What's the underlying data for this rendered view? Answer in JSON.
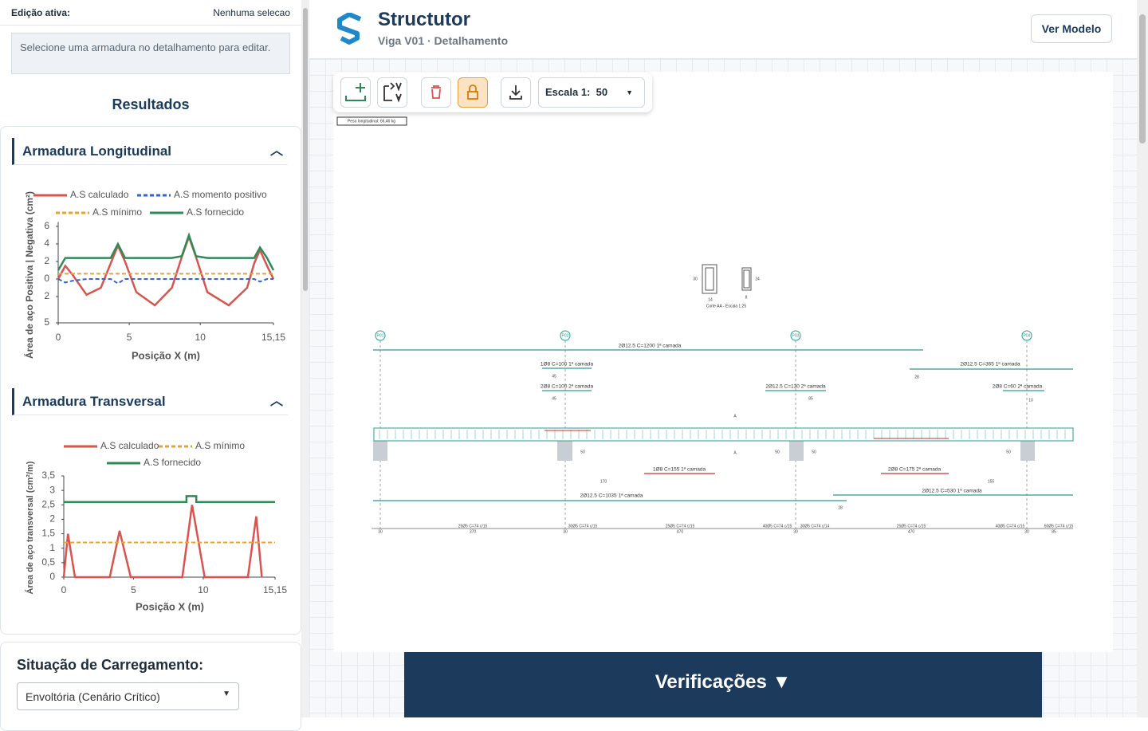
{
  "sidebar": {
    "edit_label": "Edição ativa:",
    "edit_value": "Nenhuma selecao",
    "info": "Selecione uma armadura no detalhamento para editar.",
    "results_title": "Resultados",
    "long_title": "Armadura Longitudinal",
    "trans_title": "Armadura Transversal",
    "load_title": "Situação de Carregamento:",
    "load_select": "Envoltória (Cenário Crítico)"
  },
  "chart_data": [
    {
      "type": "line",
      "y_label": "Área de aço Positiva | Negativa (cm²)",
      "x_label": "Posição X (m)",
      "xlim": [
        0,
        15.15
      ],
      "ylim": [
        -5,
        6.5
      ],
      "xticks": [
        0,
        5,
        10,
        {
          "value": 15.15,
          "label": "15,15"
        }
      ],
      "yticks": [
        6,
        4,
        2,
        0,
        {
          "value": -2,
          "label": "2"
        },
        {
          "value": -5,
          "label": "5"
        }
      ],
      "series": [
        {
          "name": "A.S calculado",
          "color": "#d9534f",
          "style": "solid",
          "x": [
            0,
            0.5,
            1,
            2,
            3,
            3.7,
            4.2,
            4.7,
            5.5,
            6.8,
            8,
            8.7,
            9.2,
            9.7,
            10.5,
            12,
            13.3,
            13.8,
            14.2,
            14.7,
            15.15
          ],
          "values": [
            0,
            1.5,
            0.5,
            -1.8,
            -1,
            1.8,
            3.8,
            2,
            -1.5,
            -3,
            -1,
            2.5,
            4.8,
            2.5,
            -1.5,
            -3,
            -1,
            1.8,
            3.3,
            1.5,
            0
          ]
        },
        {
          "name": "A.S momento positivo",
          "color": "#3366cc",
          "style": "dashed",
          "x": [
            0,
            0.5,
            1,
            2,
            3,
            3.7,
            4.2,
            4.7,
            5.5,
            6.8,
            8,
            8.7,
            9.2,
            9.7,
            10.5,
            12,
            13.3,
            13.8,
            14.2,
            14.7,
            15.15
          ],
          "values": [
            0,
            -0.4,
            -0.2,
            0,
            0,
            0,
            -0.5,
            0,
            0,
            0,
            0,
            0,
            0,
            0,
            0,
            0,
            0,
            0,
            -0.3,
            0,
            0
          ]
        },
        {
          "name": "A.S mínimo",
          "color": "#e6a23c",
          "style": "dashed",
          "x": [
            0,
            15.15
          ],
          "values": [
            0.6,
            0.6
          ]
        },
        {
          "name": "A.S fornecido",
          "color": "#2e8b57",
          "style": "solid",
          "x": [
            0,
            0.5,
            1,
            2,
            3,
            3.7,
            4.2,
            4.7,
            5.5,
            6.8,
            8,
            8.7,
            9.2,
            9.7,
            10.5,
            12,
            13.3,
            13.8,
            14.2,
            14.7,
            15.15
          ],
          "values": [
            1,
            2.4,
            2.4,
            2.4,
            2.4,
            2.4,
            4,
            2.4,
            2.4,
            2.4,
            2.4,
            2.6,
            5,
            2.6,
            2.4,
            2.4,
            2.4,
            2.4,
            3.6,
            2.4,
            1
          ]
        }
      ]
    },
    {
      "type": "line",
      "y_label": "Área de aço transversal (cm²/m)",
      "x_label": "Posição X (m)",
      "xlim": [
        0,
        15.15
      ],
      "ylim": [
        0,
        3.5
      ],
      "xticks": [
        0,
        5,
        10,
        {
          "value": 15.15,
          "label": "15,15"
        }
      ],
      "yticks": [
        {
          "value": 3.5,
          "label": "3,5"
        },
        3,
        {
          "value": 2.5,
          "label": "2,5"
        },
        2,
        {
          "value": 1.5,
          "label": "1,5"
        },
        1,
        {
          "value": 0.5,
          "label": "0,5"
        },
        0
      ],
      "series": [
        {
          "name": "A.S calculado",
          "color": "#d9534f",
          "style": "solid",
          "x": [
            0,
            0.3,
            0.8,
            3.3,
            4,
            4.8,
            8.5,
            9.2,
            10.1,
            13.2,
            13.8,
            14.2
          ],
          "values": [
            0,
            1.5,
            0,
            0,
            1.6,
            0,
            0,
            2.5,
            0,
            0,
            2.1,
            0
          ]
        },
        {
          "name": "A.S mínimo",
          "color": "#e6a23c",
          "style": "dashed",
          "x": [
            0,
            15.15
          ],
          "values": [
            1.2,
            1.2
          ]
        },
        {
          "name": "A.S fornecido",
          "color": "#2e8b57",
          "style": "solid",
          "x": [
            0,
            8.8,
            8.8,
            9.5,
            9.5,
            15.15
          ],
          "values": [
            2.6,
            2.6,
            2.8,
            2.8,
            2.6,
            2.6
          ]
        }
      ]
    }
  ],
  "header": {
    "title": "Structutor",
    "subtitle": "Viga V01 · Detalhamento",
    "button": "Ver Modelo"
  },
  "toolbar": {
    "scale_label": "Escala 1:",
    "scale_value": "50"
  },
  "drawing": {
    "weight_label": "Peso longitudinal: 66,46 kg",
    "section_title": "Corte AA - Escala 1:25",
    "pillars": [
      "P01",
      "P02",
      "P03",
      "P04"
    ],
    "bars": [
      "2Ø12.5 C=1200 1ª camada",
      "1Ø8 C=100 1ª camada",
      "2Ø8 C=100 2ª camada",
      "2Ø12.5 C=130 2ª camada",
      "2Ø12.5 C=365 1ª camada",
      "2Ø8 C=60 2ª camada",
      "1Ø8 C=155 1ª camada",
      "2Ø8 C=175 2ª camada",
      "2Ø12.5 C=1035 1ª camada",
      "2Ø12.5 C=530 1ª camada"
    ],
    "dims": [
      "45",
      "45",
      "85",
      "10",
      "28",
      "50",
      "50",
      "50",
      "50",
      "170",
      "155",
      "28",
      "30",
      "14",
      "24",
      "8",
      "A",
      "A",
      "370",
      "470",
      "470",
      "85",
      "30",
      "30",
      "30",
      "30"
    ],
    "stirrups": [
      "25Ø5 C=74 c/15",
      "30Ø5 C=74 c/15",
      "25Ø5 C=74 c/15",
      "40Ø5 C=74 c/15",
      "30Ø5 C=74 c/14",
      "25Ø5 C=74 c/15",
      "40Ø5 C=74 c/15",
      "60Ø5 C=74 c/15"
    ]
  },
  "footer": {
    "verifications": "Verificações ▼"
  }
}
